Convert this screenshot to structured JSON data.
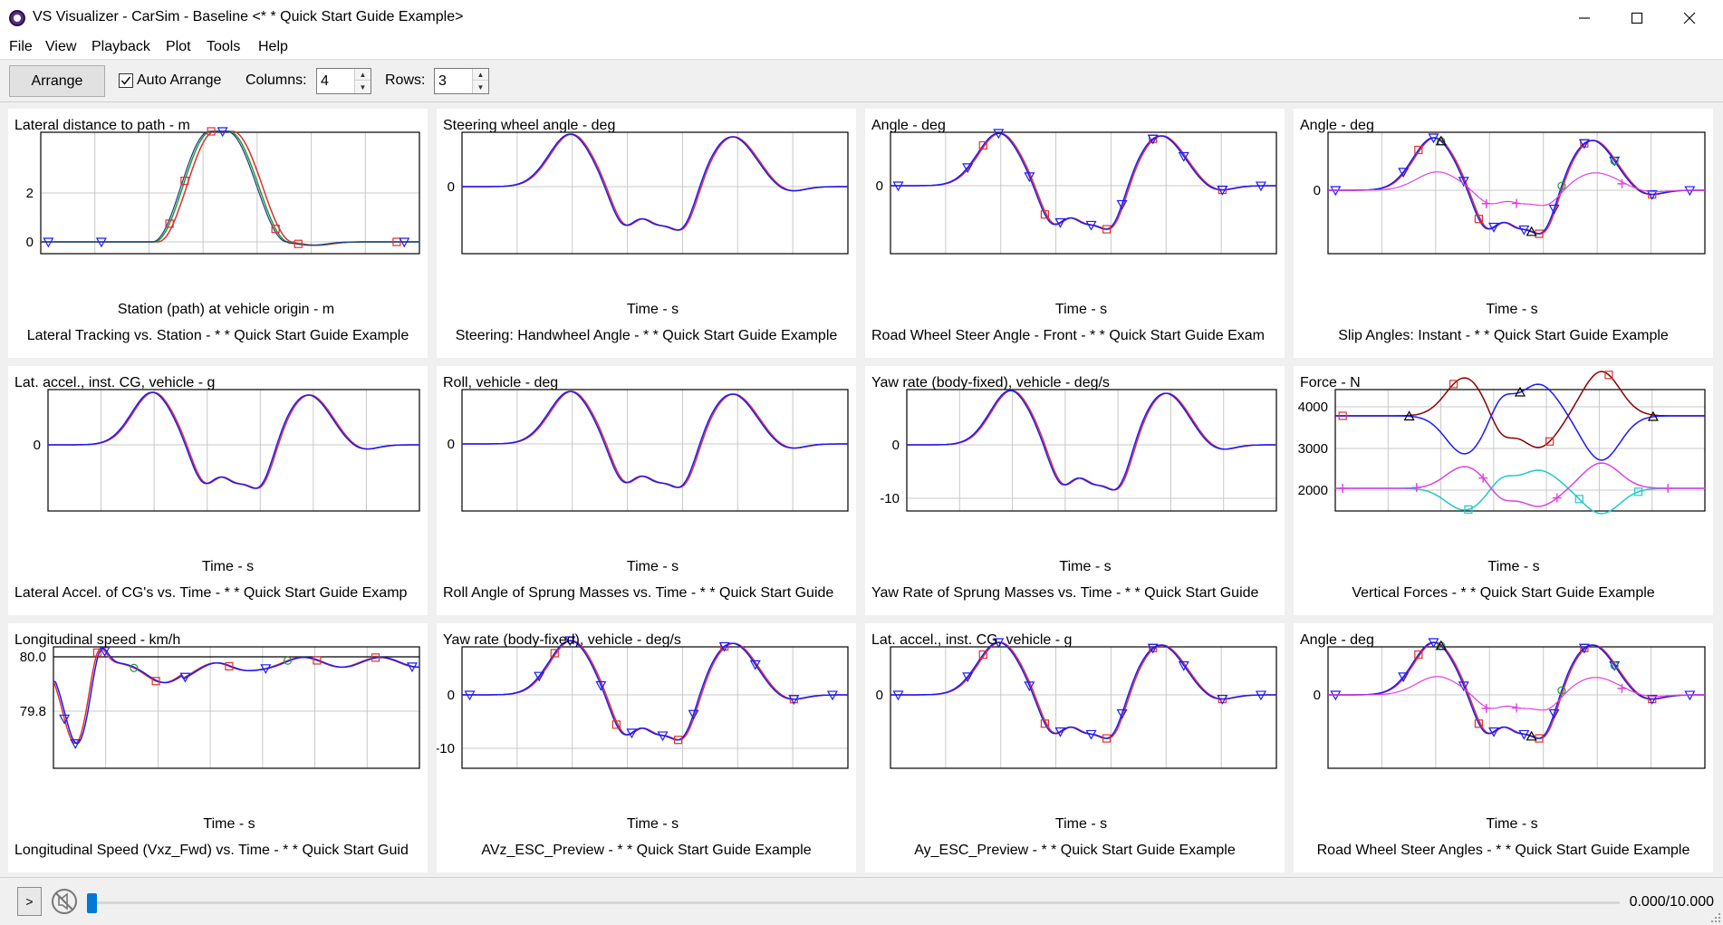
{
  "window": {
    "title": "VS Visualizer - CarSim - Baseline <* * Quick Start Guide Example>",
    "minimize_glyph": "—",
    "maximize_glyph": "☐",
    "close_glyph": "✕"
  },
  "menu": [
    "File",
    "View",
    "Playback",
    "Plot",
    "Tools",
    "Help"
  ],
  "toolbar": {
    "arrange_label": "Arrange",
    "auto_arrange_label": "Auto Arrange",
    "auto_arrange_checked": true,
    "columns_label": "Columns:",
    "columns_value": "4",
    "rows_label": "Rows:",
    "rows_value": "3"
  },
  "panels": [
    {
      "title": "Lateral distance to path - m",
      "xlabel": "Station (path) at vehicle origin - m",
      "caption": "Lateral Tracking vs. Station - * * Quick Start Guide Example",
      "yticks": [
        "2",
        "0"
      ]
    },
    {
      "title": "Steering wheel angle - deg",
      "xlabel": "Time - s",
      "caption": "Steering: Handwheel Angle - * * Quick Start Guide Example",
      "yticks": [
        "0"
      ]
    },
    {
      "title": "Angle - deg",
      "xlabel": "Time - s",
      "caption": "Road Wheel Steer Angle - Front - * * Quick Start Guide Exam",
      "yticks": [
        "0"
      ]
    },
    {
      "title": "Angle - deg",
      "xlabel": "Time - s",
      "caption": "Slip Angles: Instant - * * Quick Start Guide Example",
      "yticks": [
        "0"
      ]
    },
    {
      "title": "Lat. accel., inst. CG, vehicle - g",
      "xlabel": "Time - s",
      "caption": "Lateral Accel. of CG's vs. Time - * * Quick Start Guide Examp",
      "yticks": [
        "0"
      ]
    },
    {
      "title": "Roll, vehicle - deg",
      "xlabel": "Time - s",
      "caption": "Roll Angle of Sprung Masses vs. Time - * * Quick Start Guide",
      "yticks": [
        "0"
      ]
    },
    {
      "title": "Yaw rate (body-fixed), vehicle - deg/s",
      "xlabel": "Time - s",
      "caption": "Yaw Rate of Sprung Masses vs. Time - * * Quick Start Guide",
      "yticks": [
        "0",
        "-10"
      ]
    },
    {
      "title": "Force - N",
      "xlabel": "Time - s",
      "caption": "Vertical Forces - * * Quick Start Guide Example",
      "yticks": [
        "4000",
        "3000",
        "2000"
      ]
    },
    {
      "title": "Longitudinal speed - km/h",
      "xlabel": "Time - s",
      "caption": "Longitudinal Speed (Vxz_Fwd) vs. Time - * * Quick Start Guid",
      "yticks": [
        "80.0",
        "79.8"
      ]
    },
    {
      "title": "Yaw rate (body-fixed), vehicle - deg/s",
      "xlabel": "Time - s",
      "caption": "AVz_ESC_Preview - * * Quick Start Guide Example",
      "yticks": [
        "0",
        "-10"
      ]
    },
    {
      "title": "Lat. accel., inst. CG, vehicle - g",
      "xlabel": "Time - s",
      "caption": "Ay_ESC_Preview - * * Quick Start Guide Example",
      "yticks": [
        "0"
      ]
    },
    {
      "title": "Angle - deg",
      "xlabel": "Time - s",
      "caption": "Road Wheel Steer Angles - * * Quick Start Guide Example",
      "yticks": [
        "0"
      ]
    }
  ],
  "playback": {
    "play_label": ">",
    "time_readout": "0.000/10.000",
    "progress": 0
  },
  "colors": {
    "series_blue": "#1a1aff",
    "series_red": "#e03030",
    "series_green": "#1f9a3a",
    "series_black": "#000000",
    "series_magenta": "#e040e0",
    "series_cyan": "#20c8c8",
    "series_darkred": "#8b0000",
    "series_navy": "#1a3a8a",
    "grid": "#c8c8c8"
  }
}
